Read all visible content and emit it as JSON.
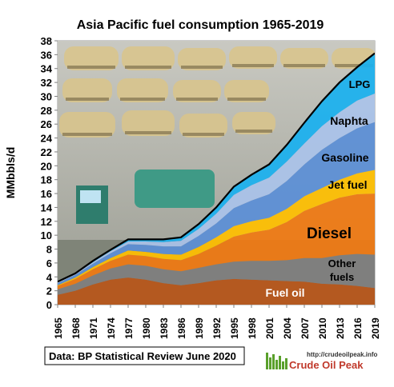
{
  "chart_data": {
    "type": "area",
    "title": "Asia Pacific fuel consumption  1965-2019",
    "ylabel": "MMbbls/d",
    "xlabel": "",
    "ylim": [
      0,
      38
    ],
    "yticks": [
      0,
      2,
      4,
      6,
      8,
      10,
      12,
      14,
      16,
      18,
      20,
      22,
      24,
      26,
      28,
      30,
      32,
      34,
      36,
      38
    ],
    "x_tick_labels": [
      "1965",
      "1968",
      "1971",
      "1974",
      "1977",
      "1980",
      "1983",
      "1986",
      "1989",
      "1992",
      "1995",
      "1998",
      "2001",
      "2004",
      "2007",
      "2010",
      "2013",
      "2016",
      "2019"
    ],
    "x": [
      1965,
      1968,
      1971,
      1974,
      1977,
      1980,
      1983,
      1986,
      1989,
      1992,
      1995,
      1998,
      2001,
      2004,
      2007,
      2010,
      2013,
      2016,
      2019
    ],
    "stacked": true,
    "series": [
      {
        "name": "Fuel oil",
        "color": "#b8561a",
        "values": [
          1.4,
          2.0,
          2.9,
          3.6,
          3.9,
          3.6,
          3.1,
          2.8,
          3.1,
          3.5,
          3.7,
          3.6,
          3.5,
          3.4,
          3.3,
          3.0,
          2.9,
          2.7,
          2.4
        ]
      },
      {
        "name": "Other fuels",
        "color": "#7f7f7f",
        "values": [
          0.8,
          1.0,
          1.3,
          1.6,
          1.9,
          2.0,
          2.0,
          2.0,
          2.2,
          2.3,
          2.5,
          2.7,
          2.8,
          3.0,
          3.4,
          3.7,
          4.2,
          4.6,
          4.8
        ]
      },
      {
        "name": "Diesel",
        "color": "#f07a12",
        "values": [
          0.5,
          0.7,
          0.9,
          1.1,
          1.4,
          1.4,
          1.5,
          1.6,
          2.0,
          2.7,
          3.6,
          4.1,
          4.5,
          5.5,
          6.8,
          7.8,
          8.3,
          8.6,
          8.8
        ]
      },
      {
        "name": "Jet fuel",
        "color": "#ffc000",
        "values": [
          0.1,
          0.2,
          0.3,
          0.4,
          0.6,
          0.6,
          0.7,
          0.8,
          1.0,
          1.2,
          1.5,
          1.6,
          1.7,
          1.9,
          2.1,
          2.3,
          2.6,
          3.0,
          3.4
        ]
      },
      {
        "name": "Gasoline",
        "color": "#5b8fd6",
        "values": [
          0.3,
          0.4,
          0.5,
          0.7,
          0.9,
          1.0,
          1.1,
          1.2,
          1.6,
          2.0,
          2.6,
          3.0,
          3.4,
          4.0,
          4.6,
          5.5,
          6.0,
          6.5,
          6.9
        ]
      },
      {
        "name": "Naphta",
        "color": "#aac3ea",
        "values": [
          0.1,
          0.1,
          0.2,
          0.3,
          0.4,
          0.5,
          0.6,
          0.8,
          1.0,
          1.4,
          1.9,
          2.2,
          2.4,
          2.8,
          3.0,
          3.4,
          3.7,
          4.0,
          4.1
        ]
      },
      {
        "name": "LPG",
        "color": "#1ab0ef",
        "values": [
          0.1,
          0.1,
          0.2,
          0.2,
          0.3,
          0.3,
          0.4,
          0.5,
          0.7,
          0.9,
          1.2,
          1.5,
          1.9,
          2.4,
          3.0,
          3.6,
          4.3,
          4.8,
          5.8
        ]
      }
    ],
    "total_line_color": "#000000",
    "grid": false,
    "legend": "labels inside areas"
  },
  "labels": {
    "fuel_oil": "Fuel oil",
    "other_fuels_line1": "Other",
    "other_fuels_line2": "fuels",
    "diesel": "Diesel",
    "jet_fuel": "Jet fuel",
    "gasoline": "Gasoline",
    "naphta": "Naphta",
    "lpg": "LPG"
  },
  "source_box": "Data: BP Statistical Review June 2020",
  "logo": {
    "url_text": "http://crudeoilpeak.info",
    "name": "Crude Oil Peak"
  }
}
